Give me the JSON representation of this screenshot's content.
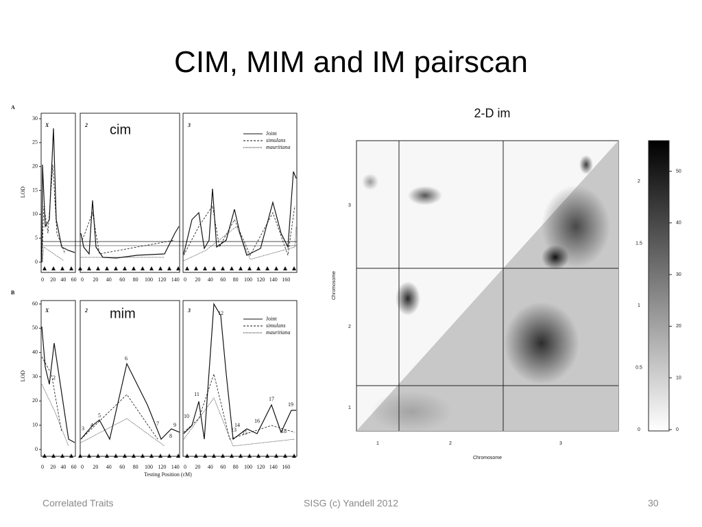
{
  "slide": {
    "title": "CIM, MIM and IM pairscan",
    "footer": {
      "left": "Correlated Traits",
      "center": "SISG (c) Yandell 2012",
      "right": "30"
    }
  },
  "figure_a": {
    "label": "A",
    "annotation": "cim",
    "y_axis_label": "LOD",
    "yticks": [
      0,
      5,
      10,
      15,
      20,
      25,
      30
    ],
    "chromosomes": [
      "X",
      "2",
      "3"
    ],
    "xticks": [
      [
        0,
        20,
        40,
        60
      ],
      [
        0,
        20,
        40,
        60,
        80,
        100,
        120,
        140
      ],
      [
        0,
        20,
        40,
        60,
        80,
        100,
        120,
        140,
        160
      ]
    ],
    "legend": [
      "Joint",
      "simulans",
      "mauritiana"
    ]
  },
  "figure_b": {
    "label": "B",
    "annotation": "mim",
    "y_axis_label": "LOD",
    "x_axis_label": "Testing Position (cM)",
    "yticks": [
      0,
      10,
      20,
      30,
      40,
      50,
      60
    ],
    "chromosomes": [
      "X",
      "2",
      "3"
    ],
    "xticks": [
      [
        0,
        20,
        40,
        60
      ],
      [
        0,
        20,
        40,
        60,
        80,
        100,
        120,
        140
      ],
      [
        0,
        20,
        40,
        60,
        80,
        100,
        120,
        140,
        160
      ]
    ],
    "legend": [
      "Joint",
      "simulans",
      "mauritiana"
    ],
    "peaks": [
      "1",
      "2",
      "3",
      "4",
      "5",
      "6",
      "7",
      "8",
      "9",
      "10",
      "11",
      "12",
      "13",
      "14",
      "15",
      "16",
      "17",
      "18",
      "19"
    ]
  },
  "heatmap": {
    "title": "2-D im",
    "x_axis_label": "Chromosome",
    "y_axis_label": "Chromosome",
    "xticks": [
      "1",
      "2",
      "3"
    ],
    "yticks": [
      "1",
      "2",
      "3"
    ],
    "right_ticks": [
      "0",
      "0.5",
      "1",
      "1.5",
      "2"
    ],
    "colorbar_ticks": [
      "0",
      "10",
      "20",
      "30",
      "40",
      "50"
    ]
  }
}
